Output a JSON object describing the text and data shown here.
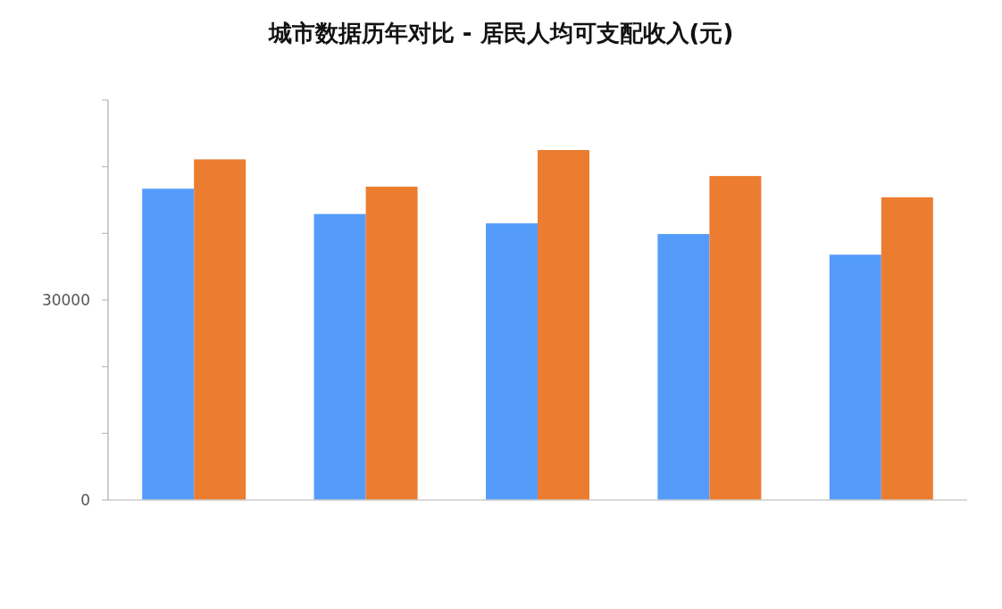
{
  "chart_data": {
    "type": "bar",
    "title": "城市数据历年对比 - 居民人均可支配收入(元)",
    "categories": [
      null,
      null,
      null,
      null,
      null
    ],
    "series": [
      {
        "color": "#559cfa",
        "values": [
          46700,
          42900,
          41500,
          39900,
          36800
        ]
      },
      {
        "color": "#ec7d30",
        "values": [
          51100,
          47000,
          52500,
          48600,
          45400
        ]
      }
    ],
    "ylim": [
      0,
      60000
    ],
    "yticks": [
      0,
      {
        "value": 10000,
        "label": null
      },
      {
        "value": 20000,
        "label": null
      },
      30000,
      {
        "value": 40000,
        "label": null
      },
      {
        "value": 50000,
        "label": null
      },
      {
        "value": 60000,
        "label": null
      }
    ],
    "tick_labels": "y"
  }
}
